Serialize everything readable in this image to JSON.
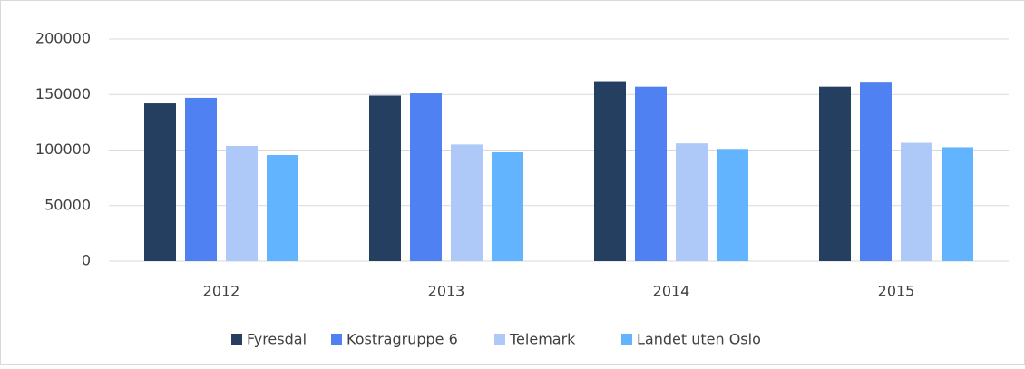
{
  "chart_data": {
    "type": "bar",
    "categories": [
      "2012",
      "2013",
      "2014",
      "2015"
    ],
    "series": [
      {
        "name": "Fyresdal",
        "color": "#243f60",
        "values": [
          142000,
          149000,
          162000,
          157000
        ]
      },
      {
        "name": "Kostragruppe 6",
        "color": "#4f81f2",
        "values": [
          147000,
          151000,
          157000,
          161500
        ]
      },
      {
        "name": "Telemark",
        "color": "#aec9f7",
        "values": [
          103700,
          105000,
          106000,
          106500
        ]
      },
      {
        "name": "Landet uten Oslo",
        "color": "#63b4ff",
        "values": [
          95500,
          98000,
          101000,
          102500
        ]
      }
    ],
    "ylim": [
      0,
      200000
    ],
    "yticks": [
      0,
      50000,
      100000,
      150000,
      200000
    ],
    "grid": true,
    "legend": "bottom"
  }
}
